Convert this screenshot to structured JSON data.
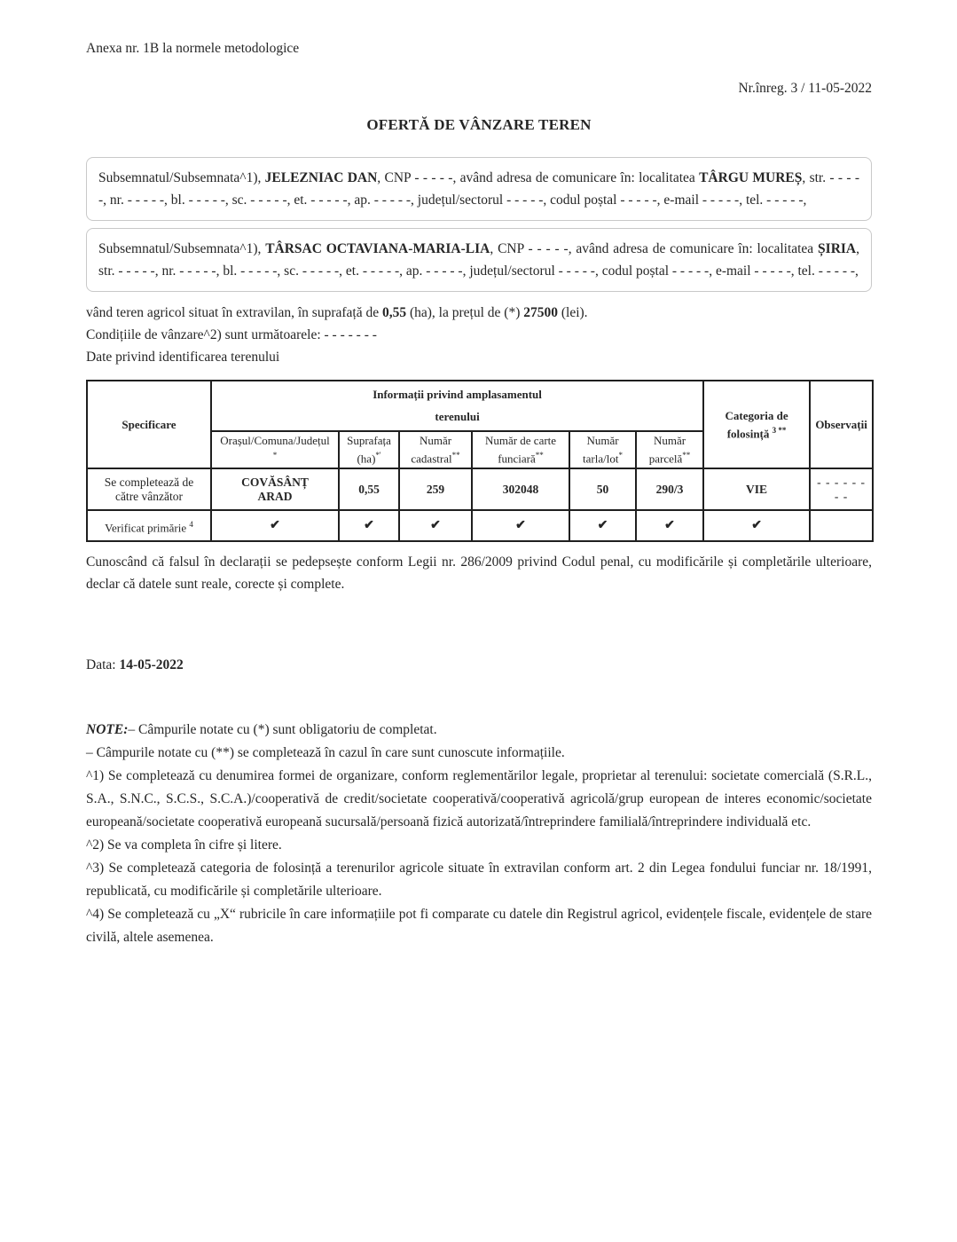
{
  "header": {
    "annex_note": "Anexa nr. 1B la normele metodologice",
    "reg_number": "Nr.înreg. 3 / 11-05-2022",
    "title": "OFERTĂ DE VÂNZARE TEREN"
  },
  "seller1": {
    "segments": [
      {
        "text": "Subsemnatul/Subsemnata^1), "
      },
      {
        "text": "JELEZNIAC DAN",
        "bold": true
      },
      {
        "text": ", CNP - - - - -, având adresa de comunicare în: localitatea "
      },
      {
        "text": "TÂRGU MUREȘ",
        "bold": true
      },
      {
        "text": ", str. - - - - -, nr. - - - - -, bl. - - - - -, sc. - - - - -, et. - - - - -, ap. - - - - -, județul/sectorul - - - - -, codul poștal - - - - -, e-mail - - - - -, tel. - - - - -,"
      }
    ]
  },
  "seller2": {
    "segments": [
      {
        "text": "Subsemnatul/Subsemnata^1), "
      },
      {
        "text": "TÂRSAC OCTAVIANA-MARIA-LIA",
        "bold": true
      },
      {
        "text": ", CNP - - - - -, având adresa de comunicare în: localitatea "
      },
      {
        "text": "ȘIRIA",
        "bold": true
      },
      {
        "text": ", str. - - - - -, nr. - - - - -, bl. - - - - -, sc. - - - - -, et. - - - - -, ap. - - - - -, județul/sectorul - - - - -, codul poștal - - - - -, e-mail - - - - -, tel. - - - - -,"
      }
    ]
  },
  "sale_line": {
    "segments": [
      {
        "text": "vând teren agricol situat în extravilan, în suprafață de "
      },
      {
        "text": "0,55",
        "bold": true
      },
      {
        "text": " (ha), la prețul de (*) "
      },
      {
        "text": "27500",
        "bold": true
      },
      {
        "text": " (lei)."
      }
    ]
  },
  "conditions_line": "Condițiile de vânzare^2) sunt următoarele: - - - - - - -",
  "land_id_line": "Date privind identificarea terenului",
  "table": {
    "header": {
      "specificare": "Specificare",
      "group_title_line1": "Informații privind amplasamentul",
      "group_title_line2": "terenului",
      "columns": [
        {
          "line1": "Orașul/Comuna/Județul",
          "line2": "",
          "sup": "*"
        },
        {
          "line1": "Suprafața",
          "line2": "(ha)",
          "sup": "*'"
        },
        {
          "line1": "Număr",
          "line2": "cadastral",
          "sup": "**"
        },
        {
          "line1": "Număr de carte",
          "line2": "funciară",
          "sup": "**"
        },
        {
          "line1": "Număr",
          "line2": "tarla/lot",
          "sup": "*"
        },
        {
          "line1": "Număr",
          "line2": "parcelă",
          "sup": "**"
        }
      ],
      "categoria_label": "Categoria de folosință",
      "categoria_sup": "3 **",
      "observatii": "Observații"
    },
    "rows": [
      {
        "label": "Se completează de către vânzător",
        "cells": [
          "COVĂSÂNȚ\nARAD",
          "0,55",
          "259",
          "302048",
          "50",
          "290/3",
          "VIE",
          "- - - - - - - -"
        ]
      },
      {
        "label": "Verificat primărie",
        "label_sup": "4",
        "cells": [
          "✔",
          "✔",
          "✔",
          "✔",
          "✔",
          "✔",
          "✔",
          ""
        ]
      }
    ]
  },
  "declaration": "Cunoscând că falsul în declarații se pedepsește conform Legii nr. 286/2009 privind Codul penal, cu modificările și completările ulterioare, declar că datele sunt reale, corecte și complete.",
  "date_line": {
    "segments": [
      {
        "text": "Data: "
      },
      {
        "text": "14-05-2022",
        "bold": true
      }
    ]
  },
  "notes": {
    "title": "NOTE:",
    "line1": "– Câmpurile notate cu (*) sunt obligatoriu de completat.",
    "line2": "– Câmpurile notate cu (**) se completează în cazul în care sunt cunoscute informațiile.",
    "note1": "^1) Se completează cu denumirea formei de organizare, conform reglementărilor legale, proprietar al terenului: societate comercială (S.R.L., S.A., S.N.C., S.C.S., S.C.A.)/cooperativă de credit/societate cooperativă/cooperativă agricolă/grup european de interes economic/societate europeană/societate cooperativă europeană sucursală/persoană fizică autorizată/întreprindere familială/întreprindere individuală etc.",
    "note2": "^2) Se va completa în cifre și litere.",
    "note3": "^3) Se completează categoria de folosință a terenurilor agricole situate în extravilan conform art. 2 din Legea fondului funciar nr. 18/1991, republicată, cu modificările și completările ulterioare.",
    "note4": "^4) Se completează cu „X“ rubricile în care informațiile pot fi comparate cu datele din Registrul agricol, evidențele fiscale, evidențele de stare civilă, altele asemenea."
  }
}
